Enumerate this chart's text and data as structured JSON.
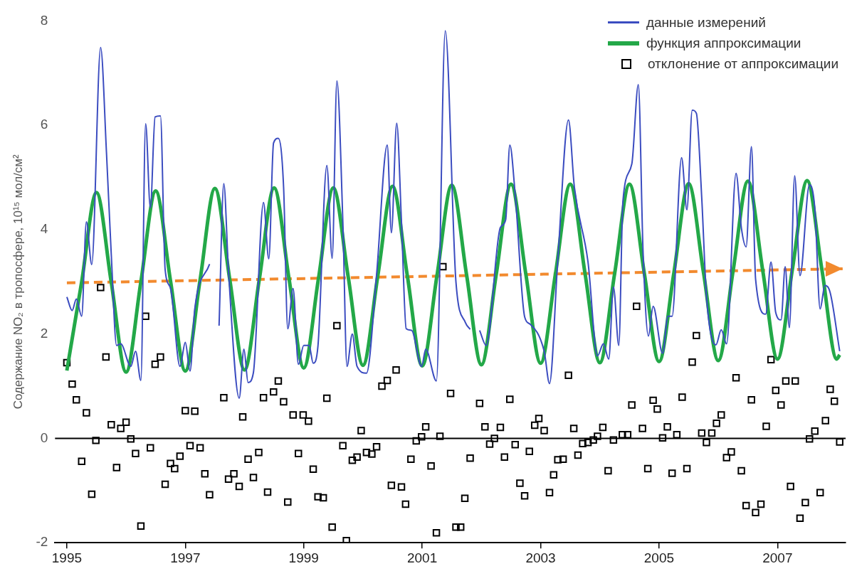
{
  "chart_data": {
    "type": "line",
    "ylabel": "Содержание NO₂ в тропосфере, 10¹⁵ мол/см²",
    "xlim": [
      1994.8,
      2008.15
    ],
    "xticks": [
      1995,
      1997,
      1999,
      2001,
      2003,
      2005,
      2007
    ],
    "ylim": [
      -2,
      8
    ],
    "yticks": [
      -2,
      0,
      2,
      4,
      6,
      8
    ],
    "grid": false,
    "legend": "top right",
    "ref_lines": [
      {
        "axis": "y",
        "value": 0,
        "color": "#000000"
      }
    ],
    "series": [
      {
        "name": "данные измерений",
        "type": "line",
        "color": "#3b4cc0",
        "marker": "none",
        "x": [
          1995.0,
          1995.09,
          1995.16,
          1995.25,
          1995.33,
          1995.42,
          1995.57,
          1995.67,
          1995.75,
          1995.84,
          1995.91,
          1996.08,
          1996.16,
          1996.25,
          1996.33,
          1996.41,
          1996.49,
          1996.58,
          1996.66,
          1996.75,
          1996.91,
          1997.0,
          1997.08,
          1997.16,
          1997.41,
          1997.45,
          1997.57,
          1997.65,
          1997.73,
          1997.91,
          1997.99,
          1998.06,
          1998.15,
          1998.32,
          1998.41,
          1998.49,
          1998.57,
          1998.66,
          1998.73,
          1998.82,
          1998.91,
          1999.0,
          1999.09,
          1999.16,
          1999.24,
          1999.39,
          1999.48,
          1999.56,
          1999.66,
          1999.73,
          1999.82,
          1999.9,
          2000.06,
          2000.23,
          2000.41,
          2000.48,
          2000.57,
          2000.65,
          2000.73,
          2000.82,
          2000.99,
          2001.06,
          2001.24,
          2001.39,
          2001.57,
          2001.73,
          2001.81,
          2001.89,
          2001.97,
          2002.08,
          2002.32,
          2002.41,
          2002.48,
          2002.57,
          2002.73,
          2002.82,
          2003.06,
          2003.15,
          2003.29,
          2003.47,
          2003.57,
          2003.8,
          2003.96,
          2004.06,
          2004.15,
          2004.23,
          2004.32,
          2004.39,
          2004.54,
          2004.65,
          2004.73,
          2004.82,
          2004.9,
          2005.06,
          2005.15,
          2005.22,
          2005.38,
          2005.47,
          2005.56,
          2005.63,
          2005.72,
          2005.8,
          2005.96,
          2006.05,
          2006.14,
          2006.3,
          2006.39,
          2006.47,
          2006.56,
          2006.63,
          2006.8,
          2006.89,
          2006.97,
          2007.06,
          2007.13,
          2007.2,
          2007.29,
          2007.38,
          2007.54,
          2007.63,
          2007.72,
          2007.8,
          2007.89,
          2008.05
        ],
        "values": [
          2.71,
          2.45,
          2.67,
          2.34,
          4.15,
          3.33,
          7.49,
          5.45,
          3.52,
          1.78,
          1.81,
          1.38,
          1.67,
          1.11,
          6.03,
          4.42,
          6.16,
          6.18,
          3.23,
          2.88,
          1.38,
          1.84,
          1.29,
          2.48,
          3.34,
          null,
          2.16,
          4.88,
          3.19,
          0.77,
          1.71,
          1.07,
          1.26,
          4.52,
          3.44,
          5.66,
          5.75,
          4.81,
          2.1,
          2.87,
          1.42,
          1.78,
          1.78,
          1.44,
          1.77,
          5.23,
          3.45,
          6.85,
          4.16,
          1.38,
          2.0,
          1.38,
          1.25,
          3.14,
          5.62,
          3.94,
          6.04,
          4.16,
          2.1,
          2.07,
          1.38,
          1.71,
          1.1,
          7.81,
          3.0,
          2.22,
          2.09,
          null,
          2.07,
          1.78,
          4.04,
          4.19,
          5.62,
          4.68,
          2.33,
          2.19,
          1.67,
          1.05,
          3.42,
          6.1,
          4.81,
          3.38,
          1.58,
          1.81,
          1.52,
          2.9,
          1.78,
          4.55,
          5.26,
          6.78,
          3.57,
          1.96,
          2.53,
          1.63,
          2.34,
          2.34,
          5.38,
          4.38,
          6.29,
          6.23,
          4.62,
          2.73,
          1.79,
          2.08,
          1.81,
          5.08,
          4.03,
          3.67,
          5.59,
          3.05,
          2.38,
          3.38,
          2.41,
          2.27,
          3.29,
          2.12,
          5.03,
          3.12,
          4.86,
          4.41,
          2.48,
          2.93,
          2.79,
          1.67
        ]
      },
      {
        "name": "функция аппроксимации",
        "type": "line",
        "color": "#23a848",
        "marker": "none",
        "x": [
          1995.0,
          1995.25,
          1995.5,
          1995.75,
          1996.0,
          1996.25,
          1996.5,
          1996.75,
          1997.0,
          1997.25,
          1997.5,
          1997.75,
          1998.0,
          1998.25,
          1998.5,
          1998.75,
          1999.0,
          1999.25,
          1999.5,
          1999.75,
          2000.0,
          2000.25,
          2000.5,
          2000.75,
          2001.0,
          2001.25,
          2001.5,
          2001.75,
          2002.0,
          2002.25,
          2002.5,
          2002.75,
          2003.0,
          2003.25,
          2003.5,
          2003.75,
          2004.0,
          2004.25,
          2004.5,
          2004.75,
          2005.0,
          2005.25,
          2005.5,
          2005.75,
          2006.0,
          2006.25,
          2006.5,
          2006.75,
          2007.0,
          2007.25,
          2007.5,
          2007.75,
          2008.0,
          2008.05
        ],
        "values": [
          1.3,
          3.0,
          4.71,
          2.99,
          1.27,
          3.0,
          4.74,
          3.02,
          1.29,
          3.04,
          4.79,
          3.05,
          1.31,
          3.05,
          4.8,
          3.07,
          1.35,
          3.07,
          4.8,
          3.1,
          1.4,
          3.11,
          4.83,
          3.11,
          1.39,
          3.12,
          4.85,
          3.13,
          1.41,
          3.14,
          4.87,
          3.15,
          1.44,
          3.15,
          4.87,
          3.16,
          1.45,
          3.16,
          4.87,
          3.17,
          1.47,
          3.17,
          4.88,
          3.18,
          1.49,
          3.21,
          4.93,
          3.22,
          1.52,
          3.23,
          4.94,
          3.23,
          1.52,
          1.6
        ]
      },
      {
        "name": "отклонение от аппроксимации",
        "type": "scatter",
        "color": "#000000",
        "marker": "square",
        "x": [
          1995.0,
          1995.09,
          1995.16,
          1995.25,
          1995.33,
          1995.42,
          1995.49,
          1995.57,
          1995.66,
          1995.75,
          1995.84,
          1995.91,
          1996.0,
          1996.08,
          1996.16,
          1996.25,
          1996.33,
          1996.41,
          1996.49,
          1996.58,
          1996.66,
          1996.75,
          1996.82,
          1996.91,
          1997.0,
          1997.08,
          1997.16,
          1997.25,
          1997.33,
          1997.41,
          1997.65,
          1997.73,
          1997.82,
          1997.91,
          1997.97,
          1998.06,
          1998.15,
          1998.24,
          1998.32,
          1998.39,
          1998.49,
          1998.57,
          1998.66,
          1998.73,
          1998.82,
          1998.91,
          1998.99,
          1999.08,
          1999.16,
          1999.24,
          1999.33,
          1999.39,
          1999.48,
          1999.56,
          1999.66,
          1999.72,
          1999.82,
          1999.9,
          1999.97,
          2000.06,
          2000.15,
          2000.23,
          2000.32,
          2000.41,
          2000.48,
          2000.56,
          2000.65,
          2000.72,
          2000.81,
          2000.9,
          2000.99,
          2001.06,
          2001.15,
          2001.24,
          2001.3,
          2001.35,
          2001.48,
          2001.57,
          2001.65,
          2001.72,
          2001.81,
          2001.97,
          2002.06,
          2002.14,
          2002.22,
          2002.32,
          2002.39,
          2002.48,
          2002.57,
          2002.65,
          2002.73,
          2002.81,
          2002.9,
          2002.97,
          2003.06,
          2003.15,
          2003.22,
          2003.29,
          2003.38,
          2003.47,
          2003.56,
          2003.63,
          2003.71,
          2003.8,
          2003.89,
          2003.96,
          2004.05,
          2004.14,
          2004.23,
          2004.38,
          2004.47,
          2004.54,
          2004.62,
          2004.72,
          2004.81,
          2004.9,
          2004.97,
          2005.06,
          2005.14,
          2005.22,
          2005.3,
          2005.39,
          2005.47,
          2005.56,
          2005.63,
          2005.72,
          2005.8,
          2005.89,
          2005.97,
          2006.05,
          2006.14,
          2006.22,
          2006.3,
          2006.39,
          2006.47,
          2006.56,
          2006.63,
          2006.72,
          2006.81,
          2006.89,
          2006.97,
          2007.06,
          2007.14,
          2007.22,
          2007.3,
          2007.38,
          2007.47,
          2007.54,
          2007.63,
          2007.72,
          2007.81,
          2007.89,
          2007.96,
          2008.05
        ],
        "values": [
          1.45,
          1.04,
          0.74,
          -0.44,
          0.49,
          -1.07,
          -0.04,
          2.89,
          1.56,
          0.26,
          -0.56,
          0.19,
          0.31,
          -0.01,
          -0.29,
          -1.68,
          2.34,
          -0.18,
          1.42,
          1.56,
          -0.88,
          -0.48,
          -0.58,
          -0.34,
          0.53,
          -0.14,
          0.52,
          -0.18,
          -0.68,
          -1.08,
          0.78,
          -0.78,
          -0.68,
          -0.92,
          0.41,
          -0.4,
          -0.75,
          -0.27,
          0.78,
          -1.03,
          0.89,
          1.1,
          0.7,
          -1.22,
          0.45,
          -0.29,
          0.45,
          0.33,
          -0.59,
          -1.12,
          -1.14,
          0.77,
          -1.7,
          2.16,
          -0.14,
          -1.96,
          -0.42,
          -0.36,
          0.15,
          -0.27,
          -0.3,
          -0.16,
          1.0,
          1.11,
          -0.9,
          1.31,
          -0.93,
          -1.26,
          -0.4,
          -0.05,
          0.03,
          0.22,
          -0.53,
          -1.81,
          0.04,
          3.29,
          0.86,
          -1.7,
          -1.7,
          -1.15,
          -0.38,
          0.67,
          0.22,
          -0.11,
          0.0,
          0.21,
          -0.36,
          0.75,
          -0.12,
          -0.86,
          -1.1,
          -0.25,
          0.25,
          0.38,
          0.15,
          -1.04,
          -0.7,
          -0.41,
          -0.4,
          1.21,
          0.19,
          -0.32,
          -0.1,
          -0.08,
          -0.03,
          0.04,
          0.21,
          -0.62,
          -0.03,
          0.07,
          0.07,
          0.64,
          2.53,
          0.19,
          -0.58,
          0.73,
          0.56,
          0.01,
          0.22,
          -0.67,
          0.07,
          0.79,
          -0.58,
          1.46,
          1.97,
          0.1,
          -0.08,
          0.1,
          0.29,
          0.45,
          -0.37,
          -0.26,
          1.16,
          -0.62,
          -1.29,
          0.74,
          -1.42,
          -1.26,
          0.23,
          1.51,
          0.92,
          0.64,
          1.1,
          -0.92,
          1.1,
          -1.53,
          -1.23,
          -0.01,
          0.14,
          -1.04,
          0.34,
          0.94,
          0.71,
          -0.07
        ]
      },
      {
        "type": "line",
        "color": "#f28a2e",
        "line_style": "dashed",
        "marker": "none",
        "x": [
          1995.0,
          2008.1
        ],
        "values": [
          2.98,
          3.25
        ]
      }
    ]
  }
}
